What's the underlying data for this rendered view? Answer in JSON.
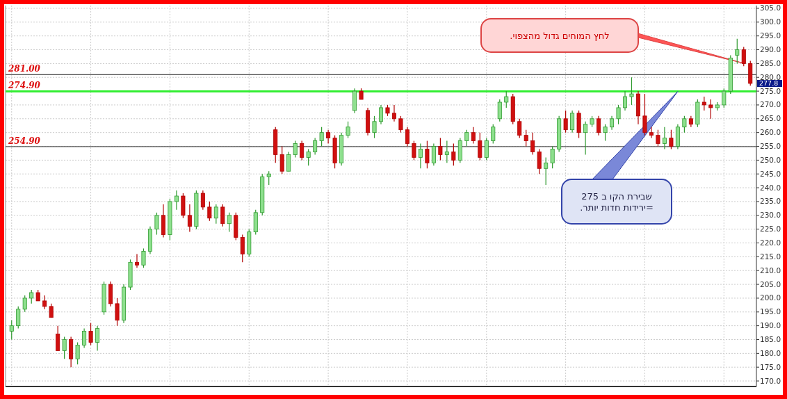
{
  "chart_data": {
    "type": "candlestick",
    "categories": [
      null,
      null,
      null,
      null,
      null,
      null,
      null,
      null,
      null,
      null,
      null,
      null,
      null,
      null,
      null,
      null,
      null,
      null,
      null,
      null,
      null,
      null,
      null,
      null,
      null,
      null,
      null,
      null,
      null,
      null,
      null,
      null,
      null,
      null,
      null,
      null,
      null,
      null,
      null,
      null,
      null,
      null,
      null,
      null,
      null,
      null,
      null,
      null,
      null,
      null,
      null,
      null,
      null,
      null,
      null,
      null,
      null,
      null,
      null,
      null,
      null,
      null,
      null,
      null,
      null,
      null,
      null,
      null,
      null,
      null,
      null,
      null,
      null,
      null,
      null,
      null,
      null,
      null,
      null,
      null,
      null,
      null,
      null,
      null,
      null,
      null,
      null,
      null,
      null,
      null,
      null,
      null,
      null,
      null,
      null,
      null,
      null,
      null,
      null,
      null,
      null,
      null,
      null,
      null,
      null,
      null,
      null,
      null,
      null,
      null,
      null,
      null,
      null
    ],
    "ohlc": [
      [
        188,
        192,
        185,
        190
      ],
      [
        190,
        197,
        189,
        196
      ],
      [
        196,
        201,
        195,
        200
      ],
      [
        200,
        203,
        198,
        202
      ],
      [
        202,
        203,
        199,
        199
      ],
      [
        199,
        201,
        196,
        197
      ],
      [
        197,
        198,
        193,
        193
      ],
      [
        187,
        190,
        181,
        181
      ],
      [
        181,
        186,
        178,
        185
      ],
      [
        185,
        186,
        175,
        178
      ],
      [
        178,
        184,
        176,
        183
      ],
      [
        183,
        189,
        182,
        188
      ],
      [
        188,
        191,
        183,
        184
      ],
      [
        184,
        190,
        181,
        189
      ],
      [
        195,
        206,
        194,
        205
      ],
      [
        205,
        206,
        197,
        198
      ],
      [
        198,
        200,
        190,
        192
      ],
      [
        192,
        205,
        191,
        204
      ],
      [
        204,
        214,
        203,
        213
      ],
      [
        213,
        216,
        211,
        212
      ],
      [
        212,
        218,
        211,
        217
      ],
      [
        217,
        226,
        216,
        225
      ],
      [
        225,
        231,
        223,
        230
      ],
      [
        230,
        234,
        222,
        223
      ],
      [
        223,
        236,
        221,
        235
      ],
      [
        235,
        239,
        232,
        237
      ],
      [
        237,
        238,
        229,
        230
      ],
      [
        230,
        234,
        224,
        226
      ],
      [
        226,
        239,
        225,
        238
      ],
      [
        238,
        239,
        232,
        233
      ],
      [
        233,
        235,
        228,
        229
      ],
      [
        229,
        234,
        227,
        233
      ],
      [
        233,
        234,
        226,
        227
      ],
      [
        227,
        231,
        224,
        230
      ],
      [
        230,
        231,
        221,
        222
      ],
      [
        222,
        223,
        213,
        216
      ],
      [
        216,
        225,
        215,
        224
      ],
      [
        224,
        232,
        223,
        231
      ],
      [
        231,
        245,
        230,
        244
      ],
      [
        244,
        246,
        241,
        245
      ],
      [
        261,
        262,
        249,
        252
      ],
      [
        252,
        255,
        245,
        246
      ],
      [
        246,
        253,
        246,
        252
      ],
      [
        252,
        257,
        251,
        256
      ],
      [
        256,
        257,
        250,
        251
      ],
      [
        251,
        254,
        248,
        253
      ],
      [
        253,
        258,
        252,
        257
      ],
      [
        257,
        262,
        255,
        260
      ],
      [
        260,
        261,
        256,
        258
      ],
      [
        258,
        259,
        247,
        249
      ],
      [
        249,
        260,
        248,
        259
      ],
      [
        259,
        264,
        258,
        262
      ],
      [
        268,
        276,
        267,
        275
      ],
      [
        275,
        276,
        272,
        272
      ],
      [
        268,
        269,
        259,
        260
      ],
      [
        260,
        266,
        258,
        264
      ],
      [
        264,
        270,
        263,
        269
      ],
      [
        269,
        270,
        266,
        267
      ],
      [
        267,
        270,
        264,
        265
      ],
      [
        265,
        266,
        260,
        261
      ],
      [
        261,
        262,
        255,
        256
      ],
      [
        256,
        257,
        250,
        251
      ],
      [
        251,
        256,
        247,
        254
      ],
      [
        254,
        257,
        247,
        249
      ],
      [
        249,
        256,
        248,
        255
      ],
      [
        255,
        258,
        250,
        252
      ],
      [
        252,
        257,
        249,
        253
      ],
      [
        253,
        256,
        248,
        250
      ],
      [
        250,
        258,
        249,
        257
      ],
      [
        257,
        261,
        255,
        260
      ],
      [
        260,
        262,
        256,
        257
      ],
      [
        257,
        260,
        250,
        251
      ],
      [
        251,
        258,
        250,
        257
      ],
      [
        257,
        263,
        256,
        262
      ],
      [
        265,
        272,
        264,
        271
      ],
      [
        271,
        275,
        269,
        273
      ],
      [
        273,
        274,
        263,
        264
      ],
      [
        264,
        265,
        258,
        259
      ],
      [
        259,
        261,
        255,
        257
      ],
      [
        257,
        260,
        252,
        253
      ],
      [
        253,
        254,
        245,
        247
      ],
      [
        247,
        251,
        241,
        249
      ],
      [
        249,
        255,
        247,
        254
      ],
      [
        254,
        266,
        253,
        265
      ],
      [
        265,
        268,
        260,
        261
      ],
      [
        261,
        268,
        260,
        267
      ],
      [
        267,
        268,
        258,
        260
      ],
      [
        260,
        264,
        252,
        263
      ],
      [
        263,
        266,
        262,
        265
      ],
      [
        265,
        266,
        259,
        260
      ],
      [
        260,
        263,
        257,
        262
      ],
      [
        262,
        266,
        261,
        265
      ],
      [
        265,
        270,
        263,
        269
      ],
      [
        269,
        275,
        268,
        273
      ],
      [
        273,
        280,
        270,
        274
      ],
      [
        274,
        275,
        263,
        266
      ],
      [
        266,
        274,
        259,
        260
      ],
      [
        260,
        262,
        258,
        259
      ],
      [
        259,
        261,
        255,
        256
      ],
      [
        256,
        262,
        254,
        258
      ],
      [
        258,
        261,
        254,
        255
      ],
      [
        255,
        263,
        254,
        262
      ],
      [
        262,
        266,
        260,
        265
      ],
      [
        265,
        266,
        262,
        263
      ],
      [
        263,
        272,
        262,
        271
      ],
      [
        271,
        273,
        268,
        270
      ],
      [
        270,
        272,
        265,
        269
      ],
      [
        269,
        271,
        268,
        270
      ],
      [
        270,
        276,
        269,
        275
      ],
      [
        275,
        288,
        274,
        287
      ],
      [
        288,
        294,
        285,
        290
      ],
      [
        290,
        291,
        284,
        285
      ],
      [
        285,
        286,
        277,
        277.8
      ]
    ],
    "ylim": [
      168,
      306
    ],
    "yticks": [
      {
        "value": 170,
        "label": "170.0"
      },
      {
        "value": 175,
        "label": "175.0"
      },
      {
        "value": 180,
        "label": "180.0"
      },
      {
        "value": 185,
        "label": "185.0"
      },
      {
        "value": 190,
        "label": "190.0"
      },
      {
        "value": 195,
        "label": "195.0"
      },
      {
        "value": 200,
        "label": "200.0"
      },
      {
        "value": 205,
        "label": "205.0"
      },
      {
        "value": 210,
        "label": "210.0"
      },
      {
        "value": 215,
        "label": "215.0"
      },
      {
        "value": 220,
        "label": "220.0"
      },
      {
        "value": 225,
        "label": "225.0"
      },
      {
        "value": 230,
        "label": "230.0"
      },
      {
        "value": 235,
        "label": "235.0"
      },
      {
        "value": 240,
        "label": "240.0"
      },
      {
        "value": 245,
        "label": "245.0"
      },
      {
        "value": 250,
        "label": "250.0"
      },
      {
        "value": 255,
        "label": "255.0"
      },
      {
        "value": 260,
        "label": "260.0"
      },
      {
        "value": 265,
        "label": "265.0"
      },
      {
        "value": 270,
        "label": "270.0"
      },
      {
        "value": 275,
        "label": "275.0"
      },
      {
        "value": 280,
        "label": "280.0"
      },
      {
        "value": 285,
        "label": "285.0"
      },
      {
        "value": 290,
        "label": "290.0"
      },
      {
        "value": 295,
        "label": "295.0"
      },
      {
        "value": 300,
        "label": "300.0"
      },
      {
        "value": 305,
        "label": "305.0"
      }
    ],
    "ref_lines": [
      {
        "axis": "y",
        "value": 281,
        "label": "281.00",
        "color": "#555555"
      },
      {
        "axis": "y",
        "value": 274.9,
        "label": "274.90",
        "color": "#33ee33"
      },
      {
        "axis": "y",
        "value": 254.9,
        "label": "254.90",
        "color": "#555555"
      }
    ],
    "annotations": [
      "277.8",
      "לחץ המוחים  גדול מהצפוי.",
      "שבירת הקו ב 275\n=ירידות חדות יותר."
    ],
    "grid": true
  }
}
